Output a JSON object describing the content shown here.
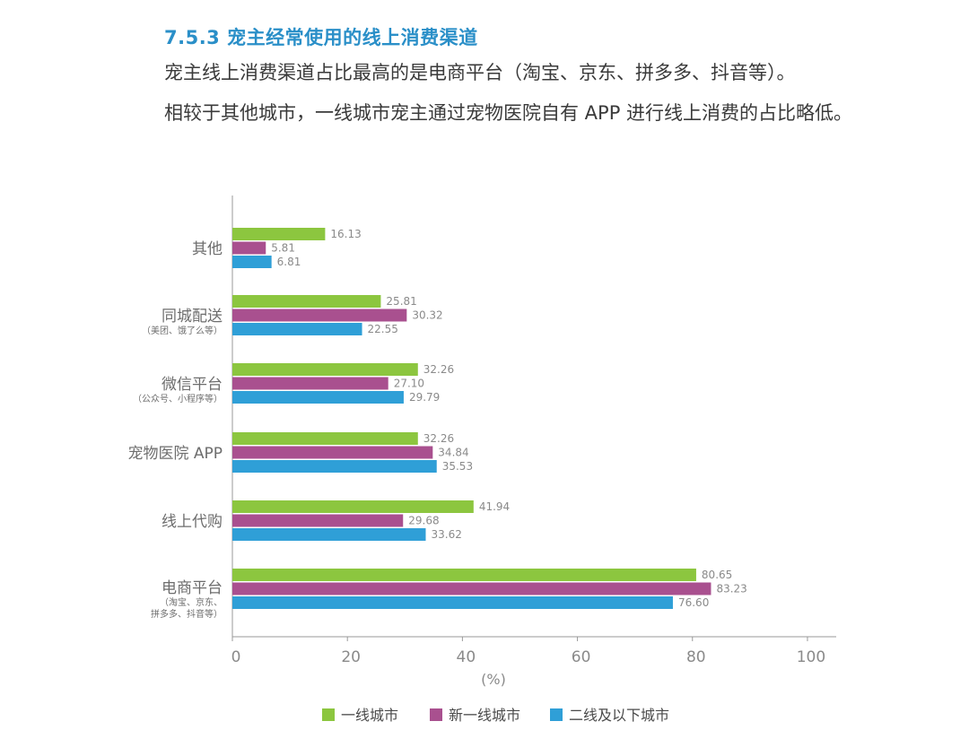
{
  "header": {
    "section_title": "7.5.3 宠主经常使用的线上消费渠道",
    "paragraph1": "宠主线上消费渠道占比最高的是电商平台（淘宝、京东、拼多多、抖音等）。",
    "paragraph2": "相较于其他城市，一线城市宠主通过宠物医院自有 APP 进行线上消费的占比略低。"
  },
  "chart_data": {
    "type": "bar",
    "orientation": "horizontal",
    "categories": [
      {
        "label": "其他",
        "sub": []
      },
      {
        "label": "同城配送",
        "sub": [
          "（美团、饿了么等）"
        ]
      },
      {
        "label": "微信平台",
        "sub": [
          "（公众号、小程序等）"
        ]
      },
      {
        "label": "宠物医院 APP",
        "sub": []
      },
      {
        "label": "线上代购",
        "sub": []
      },
      {
        "label": "电商平台",
        "sub": [
          "（淘宝、京东、",
          "拼多多、抖音等）"
        ]
      }
    ],
    "series": [
      {
        "name": "一线城市",
        "color": "#8cc63f",
        "values": [
          16.13,
          25.81,
          32.26,
          32.26,
          41.94,
          80.65
        ],
        "labels": [
          "16.13",
          "25.81",
          "32.26",
          "32.26",
          "41.94",
          "80.65"
        ]
      },
      {
        "name": "新一线城市",
        "color": "#a9508f",
        "values": [
          5.81,
          30.32,
          27.1,
          34.84,
          29.68,
          83.23
        ],
        "labels": [
          "5.81",
          "30.32",
          "27.10",
          "34.84",
          "29.68",
          "83.23"
        ]
      },
      {
        "name": "二线及以下城市",
        "color": "#2f9fd7",
        "values": [
          6.81,
          22.55,
          29.79,
          35.53,
          33.62,
          76.6
        ],
        "labels": [
          "6.81",
          "22.55",
          "29.79",
          "35.53",
          "33.62",
          "76.60"
        ]
      }
    ],
    "xlim": [
      0,
      105
    ],
    "xticks": [
      "0",
      "20",
      "40",
      "60",
      "80",
      "100"
    ],
    "xtick_values": [
      0,
      20,
      40,
      60,
      80,
      100
    ],
    "xlabel": "(%)",
    "legend_position": "bottom",
    "grid": false
  }
}
